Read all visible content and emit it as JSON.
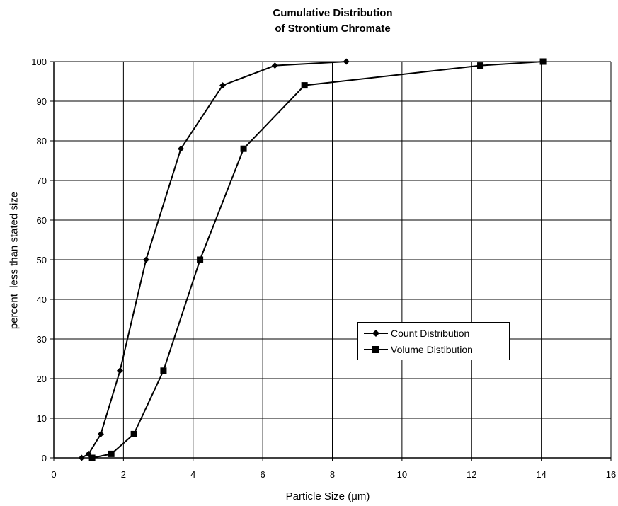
{
  "chart_data": {
    "type": "line",
    "title_lines": [
      "Cumulative Distribution",
      "of Strontium Chromate"
    ],
    "xlabel": "Particle Size (μm)",
    "ylabel": "percent  less than stated size",
    "xlim": [
      0,
      16
    ],
    "ylim": [
      0,
      100
    ],
    "xticks": [
      0,
      2,
      4,
      6,
      8,
      10,
      12,
      14,
      16
    ],
    "yticks": [
      0,
      10,
      20,
      30,
      40,
      50,
      60,
      70,
      80,
      90,
      100
    ],
    "grid": true,
    "legend_position": "center-right",
    "series": [
      {
        "name": "Count Distribution",
        "marker": "diamond",
        "color": "#000000",
        "x": [
          0.8,
          1.0,
          1.35,
          1.9,
          2.65,
          3.65,
          4.85,
          6.35,
          8.4
        ],
        "y": [
          0,
          1,
          6,
          22,
          50,
          78,
          94,
          99,
          100
        ]
      },
      {
        "name": "Volume Distibution",
        "marker": "square",
        "color": "#000000",
        "x": [
          1.1,
          1.65,
          2.3,
          3.15,
          4.2,
          5.45,
          7.2,
          12.25,
          14.05
        ],
        "y": [
          0,
          1,
          6,
          22,
          50,
          78,
          94,
          99,
          100
        ]
      }
    ]
  }
}
